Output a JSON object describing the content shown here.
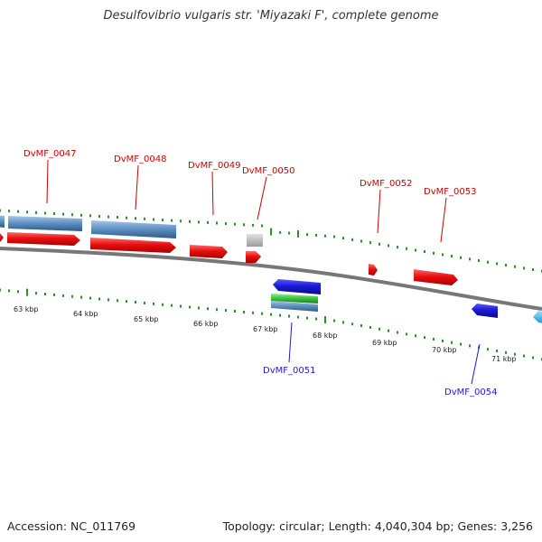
{
  "title": "Desulfovibrio vulgaris str. 'Miyazaki F', complete genome",
  "footer": {
    "accession": "Accession: NC_011769",
    "summary": "Topology: circular; Length: 4,040,304 bp; Genes: 3,256"
  },
  "colors": {
    "background": "#ffffff",
    "backbone": "#777777",
    "forward_tick": "#2f8f2f",
    "reverse_tick": "#2f8f2f",
    "red_cds": "#e81010",
    "blue_cds": "#1a1ad8",
    "steel_blue": "#5b8ec0",
    "green_feature": "#3bc13b",
    "gray_feature": "#b8b8b8",
    "cyan_feature": "#39b8e8",
    "top_label": "#cc0000",
    "bottom_label": "#1a1ad8"
  },
  "scale_labels": [
    "63 kbp",
    "64 kbp",
    "65 kbp",
    "66 kbp",
    "67 kbp",
    "68 kbp",
    "69 kbp",
    "70 kbp",
    "71 kbp"
  ],
  "gene_labels": {
    "top": [
      "DvMF_0047",
      "DvMF_0048",
      "DvMF_0049",
      "DvMF_0050",
      "DvMF_0052",
      "DvMF_0053"
    ],
    "bottom": [
      "DvMF_0051",
      "DvMF_0054"
    ]
  }
}
